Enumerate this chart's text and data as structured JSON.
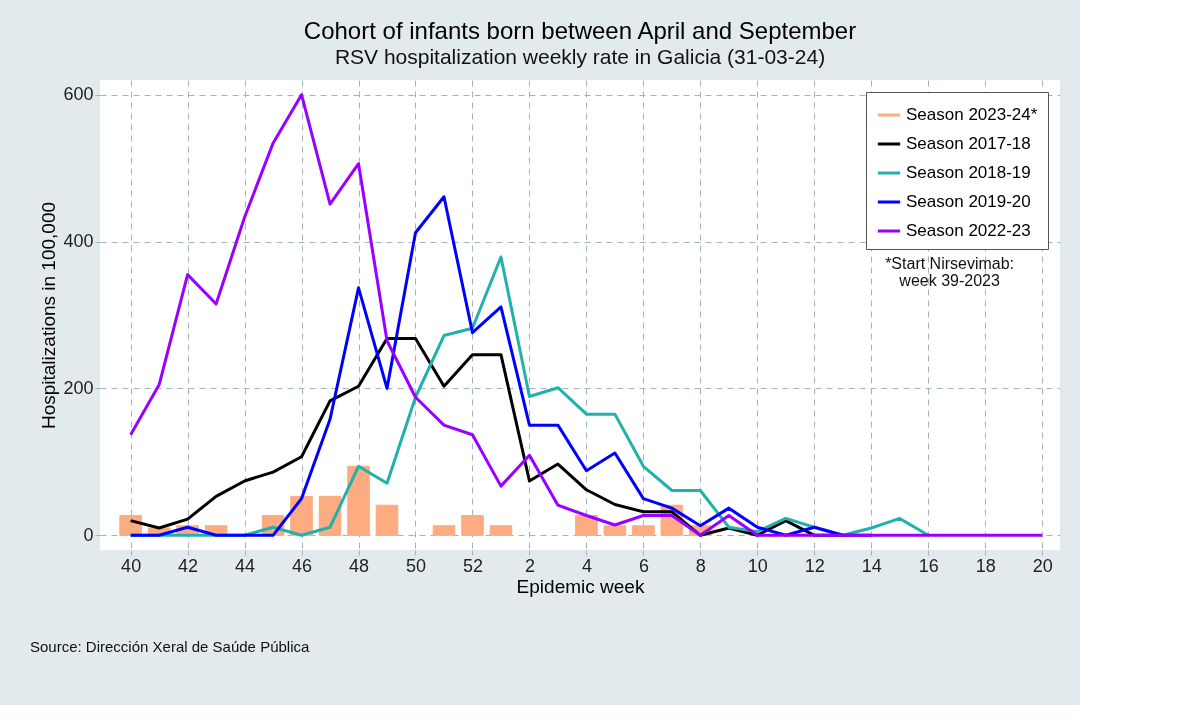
{
  "chart_data": {
    "type": "line",
    "title": "Cohort of infants born between April and September",
    "subtitle": "RSV hospitalization weekly rate in Galicia (31-03-24)",
    "xlabel": "Epidemic week",
    "ylabel": "Hospitalizations in 100,000",
    "categories": [
      "40",
      null,
      "42",
      null,
      "44",
      null,
      "46",
      null,
      "48",
      null,
      "50",
      null,
      "52",
      null,
      "2",
      null,
      "4",
      null,
      "6",
      null,
      "8",
      null,
      "10",
      null,
      "12",
      null,
      "14",
      null,
      "16",
      null,
      "18",
      null,
      "20"
    ],
    "series": [
      {
        "name": "Season 2023-24*",
        "type": "bar",
        "color": "#fdab80",
        "values": [
          27,
          10,
          13,
          13,
          null,
          27,
          53,
          53,
          94,
          41,
          null,
          13,
          27,
          13,
          null,
          null,
          27,
          13,
          13,
          41,
          13,
          null,
          null,
          null,
          null,
          null,
          null,
          null,
          null,
          null,
          null,
          null,
          null
        ]
      },
      {
        "name": "Season 2017-18",
        "color": "#000000",
        "values": [
          20,
          10,
          22,
          53,
          74,
          86,
          107,
          183,
          203,
          268,
          268,
          203,
          246,
          246,
          74,
          97,
          62,
          42,
          32,
          32,
          0,
          10,
          0,
          20,
          0,
          0,
          null,
          null,
          null,
          null,
          null,
          null,
          null
        ]
      },
      {
        "name": "Season 2018-19",
        "color": "#20b2aa",
        "values": [
          0,
          0,
          0,
          0,
          0,
          11,
          0,
          11,
          94,
          71,
          188,
          272,
          282,
          379,
          189,
          201,
          165,
          165,
          94,
          61,
          61,
          11,
          5,
          23,
          11,
          0,
          10,
          23,
          0,
          null,
          null,
          null,
          null
        ]
      },
      {
        "name": "Season 2019-20",
        "color": "#0000ff",
        "values": [
          0,
          0,
          11,
          0,
          0,
          0,
          50,
          158,
          337,
          200,
          412,
          461,
          276,
          311,
          150,
          150,
          88,
          112,
          50,
          37,
          13,
          37,
          11,
          0,
          11,
          0,
          0,
          null,
          null,
          null,
          null,
          null,
          null
        ]
      },
      {
        "name": "Season 2022-23",
        "color": "#9900ff",
        "values": [
          137,
          205,
          355,
          315,
          433,
          534,
          600,
          451,
          506,
          265,
          188,
          150,
          137,
          67,
          109,
          41,
          27,
          14,
          27,
          27,
          0,
          27,
          0,
          0,
          0,
          0,
          0,
          0,
          0,
          0,
          0,
          0,
          0
        ]
      }
    ],
    "ylim": [
      -20,
      620
    ],
    "yticks": [
      0,
      200,
      400,
      600
    ],
    "grid": true,
    "legend": "top right",
    "annotations": [
      "*Start Nirsevimab:\nweek 39-2023",
      "Source: Dirección Xeral de Saúde Pública"
    ]
  }
}
